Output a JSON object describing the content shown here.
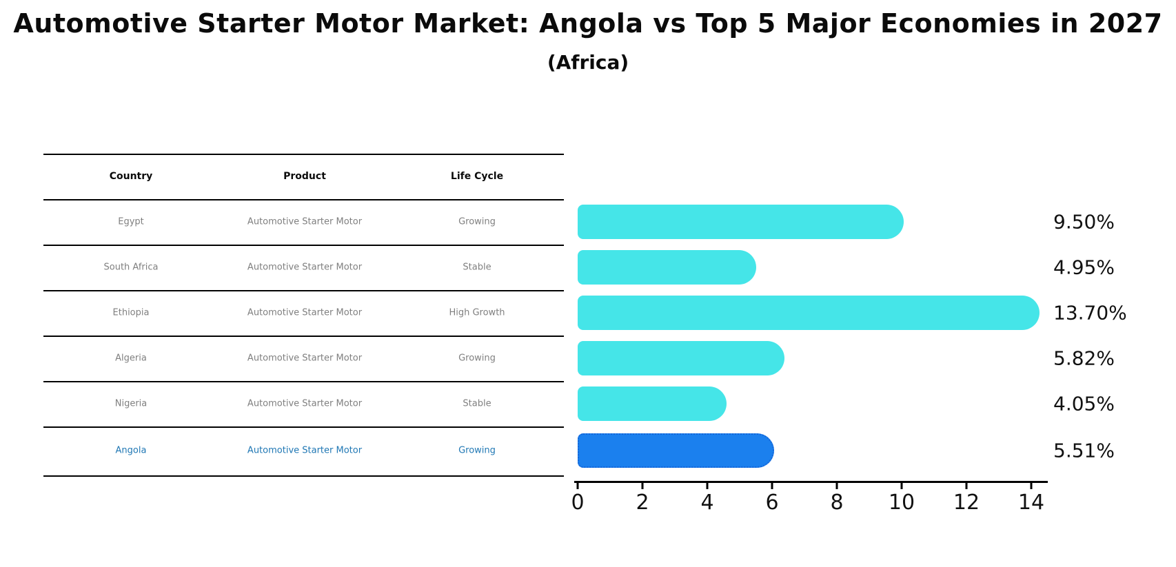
{
  "header": {
    "title": "Automotive Starter Motor Market: Angola vs Top 5 Major Economies in 2027",
    "subtitle": "(Africa)"
  },
  "table": {
    "headers": [
      "Country",
      "Product",
      "Life Cycle"
    ],
    "rows": [
      {
        "country": "Egypt",
        "product": "Automotive Starter Motor",
        "life_cycle": "Growing",
        "highlight": false
      },
      {
        "country": "South Africa",
        "product": "Automotive Starter Motor",
        "life_cycle": "Stable",
        "highlight": false
      },
      {
        "country": "Ethiopia",
        "product": "Automotive Starter Motor",
        "life_cycle": "High Growth",
        "highlight": false
      },
      {
        "country": "Algeria",
        "product": "Automotive Starter Motor",
        "life_cycle": "Growing",
        "highlight": false
      },
      {
        "country": "Nigeria",
        "product": "Automotive Starter Motor",
        "life_cycle": "Stable",
        "highlight": false
      },
      {
        "country": "Angola",
        "product": "Automotive Starter Motor",
        "life_cycle": "Growing",
        "highlight": true
      }
    ]
  },
  "chart_data": {
    "type": "bar",
    "orientation": "horizontal",
    "title": "Automotive Starter Motor Market: Angola vs Top 5 Major Economies in 2027",
    "subtitle": "(Africa)",
    "categories": [
      "Egypt",
      "South Africa",
      "Ethiopia",
      "Algeria",
      "Nigeria",
      "Angola"
    ],
    "values": [
      9.5,
      4.95,
      13.7,
      5.82,
      4.05,
      5.51
    ],
    "value_labels": [
      "9.50%",
      "4.95%",
      "13.70%",
      "5.82%",
      "4.05%",
      "5.51%"
    ],
    "xlim": [
      0,
      14
    ],
    "x_ticks": [
      "0",
      "2",
      "4",
      "6",
      "8",
      "10",
      "12",
      "14"
    ],
    "grid": false,
    "legend": "none",
    "highlight_index": 5,
    "bar_color": "#45e5e8",
    "highlight_color": "#1b80ee",
    "highlight_border_color": "#1565d8"
  }
}
